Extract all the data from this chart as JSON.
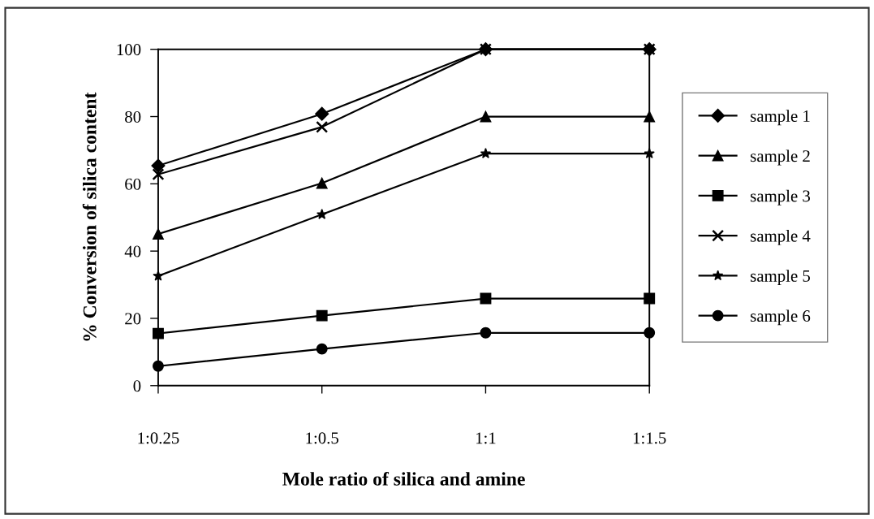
{
  "chart_data": {
    "type": "line",
    "xlabel": "Mole ratio of silica and amine",
    "ylabel": "% Conversion of silica content",
    "categories": [
      "1:0.25",
      "1:0.5",
      "1:1",
      "1:1.5"
    ],
    "series": [
      {
        "name": "sample 1",
        "color": "#000000",
        "marker": "diamond",
        "values": [
          65.4,
          80.8,
          100,
          100
        ]
      },
      {
        "name": "sample 2",
        "color": "#000000",
        "marker": "triangle",
        "values": [
          45.1,
          60.2,
          80,
          80
        ]
      },
      {
        "name": "sample 3",
        "color": "#000000",
        "marker": "square",
        "values": [
          15.5,
          20.8,
          25.9,
          25.9
        ]
      },
      {
        "name": "sample 4",
        "color": "#000000",
        "marker": "cross",
        "values": [
          62.8,
          76.9,
          100,
          100
        ]
      },
      {
        "name": "sample 5",
        "color": "#000000",
        "marker": "star",
        "values": [
          32.6,
          50.9,
          69,
          69
        ]
      },
      {
        "name": "sample 6",
        "color": "#000000",
        "marker": "circle",
        "values": [
          5.8,
          10.9,
          15.7,
          15.7
        ]
      }
    ],
    "ylim": [
      0,
      100
    ],
    "yticks": [
      0,
      20,
      40,
      60,
      80,
      100
    ],
    "legend": "right",
    "line_style": "solid"
  }
}
